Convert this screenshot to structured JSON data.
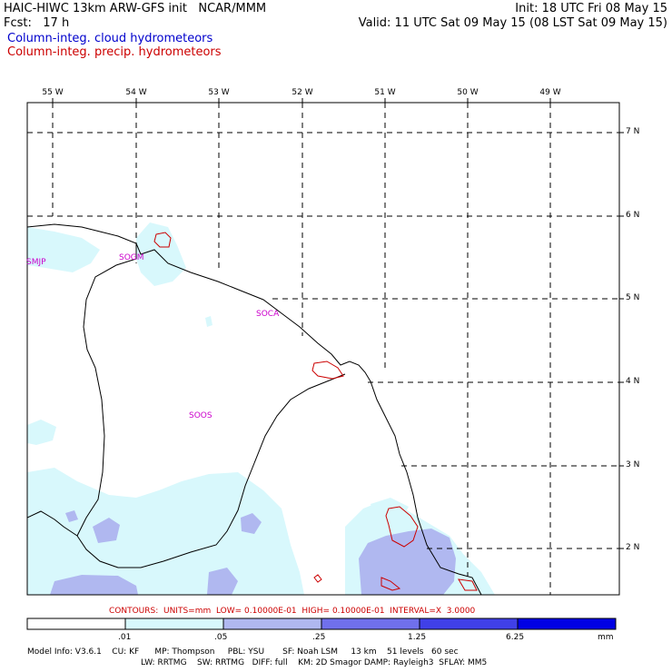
{
  "header": {
    "title_left": "HAIC-HIWC 13km ARW-GFS init   NCAR/MMM",
    "init": "Init: 18 UTC Fri 08 May 15",
    "fcst": "Fcst:   17 h",
    "valid": "Valid: 11 UTC Sat 09 May 15 (08 LST Sat 09 May 15)",
    "legend_cloud": "Column-integ. cloud hydrometeors",
    "legend_precip": "Column-integ. precip. hydrometeors",
    "cloud_color": "#0000cc",
    "precip_color": "#cc0000"
  },
  "map": {
    "lon_labels": [
      "55 W",
      "54 W",
      "53 W",
      "52 W",
      "51 W",
      "50 W",
      "49 W"
    ],
    "lat_labels": [
      "7 N",
      "6 N",
      "5 N",
      "4 N",
      "3 N",
      "2 N"
    ],
    "stations": [
      "SMJP",
      "SOGM",
      "SOCA",
      "SOOS"
    ]
  },
  "contour_info": "CONTOURS:  UNITS=mm  LOW= 0.10000E-01  HIGH= 0.10000E-01  INTERVAL=X  3.0000",
  "colorbar": {
    "ticks": [
      ".01",
      ".05",
      ".25",
      "1.25",
      "6.25"
    ],
    "units": "mm",
    "colors": [
      "#ffffff",
      "#d8f8fc",
      "#b0b8f0",
      "#7070ec",
      "#4040e8",
      "#0000e4"
    ]
  },
  "model_info": {
    "line1": "Model Info: V3.6.1    CU: KF      MP: Thompson     PBL: YSU       SF: Noah LSM     13 km    51 levels   60 sec",
    "line2": "LW: RRTMG    SW: RRTMG   DIFF: full    KM: 2D Smagor DAMP: Rayleigh3  SFLAY: MM5"
  }
}
